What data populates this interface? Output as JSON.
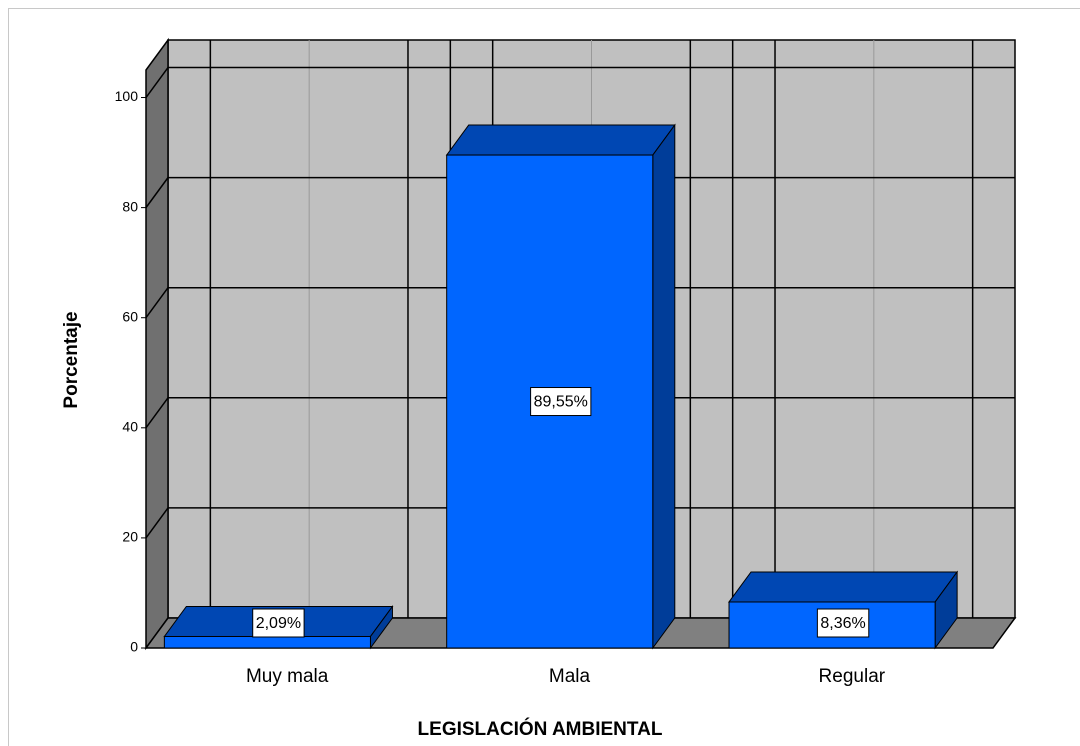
{
  "chart_data": {
    "type": "bar3d",
    "x_label": "LEGISLACIÓN AMBIENTAL",
    "y_label": "Porcentaje",
    "categories": [
      "Muy mala",
      "Mala",
      "Regular"
    ],
    "values": [
      2.09,
      89.55,
      8.36
    ],
    "value_labels": [
      "2,09%",
      "89,55%",
      "8,36%"
    ],
    "color": "#0066ff",
    "ylim": [
      0,
      105
    ],
    "yticks": [
      0,
      20,
      40,
      60,
      80,
      100
    ],
    "grid": true
  }
}
